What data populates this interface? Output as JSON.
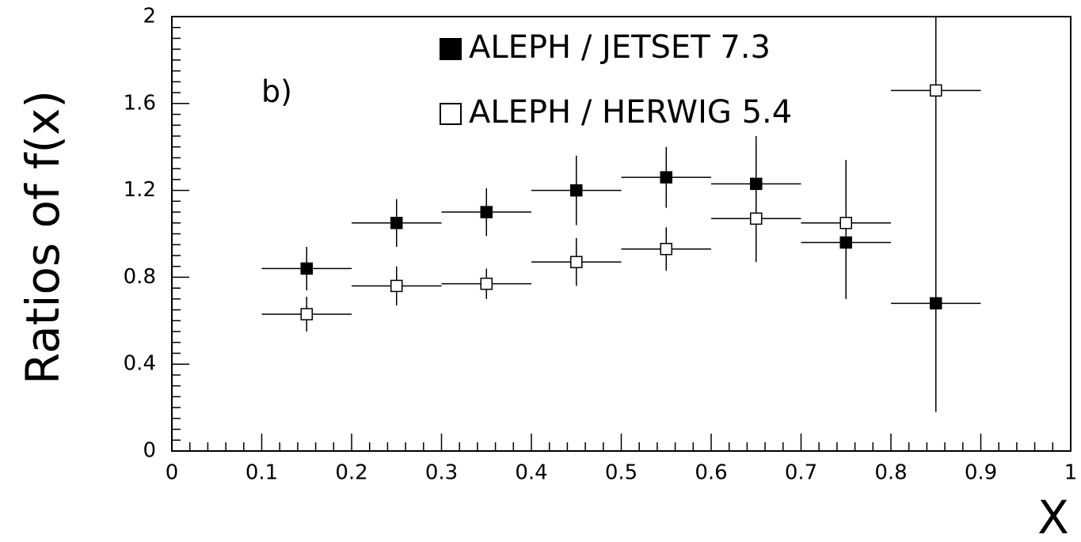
{
  "chart_data": {
    "type": "scatter",
    "y_label": "Ratios of f(x)",
    "x_label": "X",
    "annotation": "b)",
    "x": [
      0.15,
      0.25,
      0.35,
      0.45,
      0.55,
      0.65,
      0.75,
      0.85
    ],
    "xerr": [
      0.05,
      0.05,
      0.05,
      0.05,
      0.05,
      0.05,
      0.05,
      0.05
    ],
    "series": [
      {
        "name": "ALEPH / JETSET 7.3",
        "color": "#000000",
        "filled": true,
        "values": [
          0.84,
          1.05,
          1.1,
          1.2,
          1.26,
          1.23,
          0.96,
          0.68
        ],
        "errors": [
          0.1,
          0.11,
          0.11,
          0.16,
          0.14,
          0.22,
          0.26,
          0.5
        ]
      },
      {
        "name": "ALEPH / HERWIG 5.4",
        "color": "#000000",
        "filled": false,
        "values": [
          0.63,
          0.76,
          0.77,
          0.87,
          0.93,
          1.07,
          1.05,
          1.66
        ],
        "errors": [
          0.08,
          0.09,
          0.07,
          0.11,
          0.1,
          0.2,
          0.29,
          0.5
        ]
      }
    ],
    "xlim": [
      0,
      1
    ],
    "ylim": [
      0,
      2
    ],
    "xticks": [
      0,
      0.1,
      0.2,
      0.3,
      0.4,
      0.5,
      0.6,
      0.7,
      0.8,
      0.9,
      1
    ],
    "yticks": [
      0,
      0.4,
      0.8,
      1.2,
      1.6,
      2
    ],
    "legend": "top center"
  }
}
